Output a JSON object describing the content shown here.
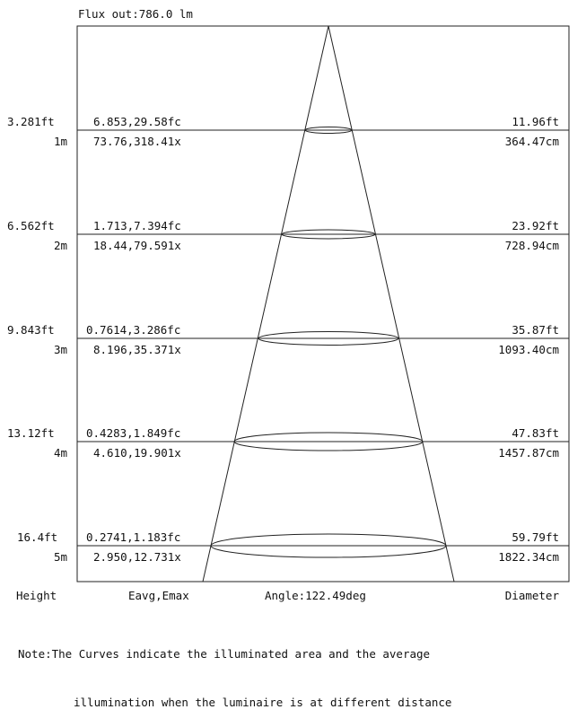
{
  "header": {
    "flux": "Flux out:786.0 lm"
  },
  "rows": [
    {
      "height_ft": "3.281ft",
      "height_m": "1m",
      "fc": "6.853,29.58fc",
      "lx": "73.76,318.41x",
      "diam_ft": "11.96ft",
      "diam_cm": "364.47cm"
    },
    {
      "height_ft": "6.562ft",
      "height_m": "2m",
      "fc": "1.713,7.394fc",
      "lx": "18.44,79.591x",
      "diam_ft": "23.92ft",
      "diam_cm": "728.94cm"
    },
    {
      "height_ft": "9.843ft",
      "height_m": "3m",
      "fc": "0.7614,3.286fc",
      "lx": "8.196,35.371x",
      "diam_ft": "35.87ft",
      "diam_cm": "1093.40cm"
    },
    {
      "height_ft": "13.12ft",
      "height_m": "4m",
      "fc": "0.4283,1.849fc",
      "lx": "4.610,19.901x",
      "diam_ft": "47.83ft",
      "diam_cm": "1457.87cm"
    },
    {
      "height_ft": "16.4ft",
      "height_m": "5m",
      "fc": "0.2741,1.183fc",
      "lx": "2.950,12.731x",
      "diam_ft": "59.79ft",
      "diam_cm": "1822.34cm"
    }
  ],
  "footer": {
    "height": "Height",
    "eavg": "Eavg,Emax",
    "angle": "Angle:122.49deg",
    "diameter": "Diameter"
  },
  "note": {
    "line1": "Note:The Curves indicate the illuminated area and the average",
    "line2": "illumination when the luminaire is at different distance"
  },
  "colors": {
    "line": "#222222",
    "text": "#111111"
  }
}
